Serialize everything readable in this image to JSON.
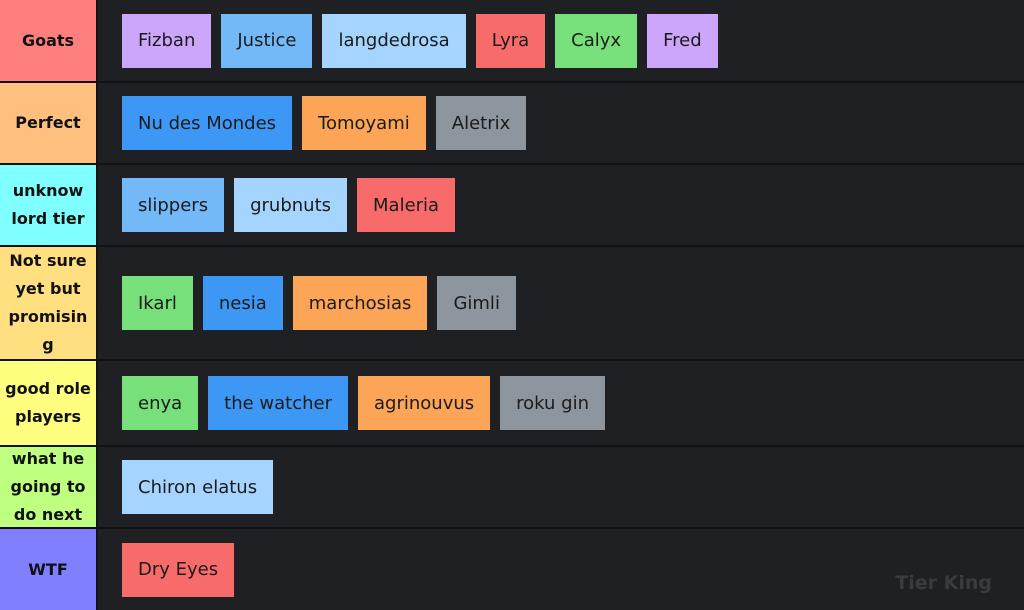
{
  "tiers": [
    {
      "label": "Goats",
      "color": "#ff7f7f",
      "items": [
        {
          "text": "Fizban",
          "color": "#cba6fb"
        },
        {
          "text": "Justice",
          "color": "#74b9f7"
        },
        {
          "text": "langdedrosa",
          "color": "#a5d4ff"
        },
        {
          "text": "Lyra",
          "color": "#f86b6b"
        },
        {
          "text": "Calyx",
          "color": "#77e07b"
        },
        {
          "text": "Fred",
          "color": "#cba6fb"
        }
      ]
    },
    {
      "label": "Perfect",
      "color": "#ffbf7f",
      "items": [
        {
          "text": "Nu des Mondes",
          "color": "#3d98f5"
        },
        {
          "text": "Tomoyami",
          "color": "#fca556"
        },
        {
          "text": "Aletrix",
          "color": "#8d959f"
        }
      ]
    },
    {
      "label": "unknow lord tier",
      "color": "#7fffff",
      "items": [
        {
          "text": "slippers",
          "color": "#74b9f7"
        },
        {
          "text": "grubnuts",
          "color": "#a5d4ff"
        },
        {
          "text": "Maleria",
          "color": "#f86b6b"
        }
      ]
    },
    {
      "label": "Not sure yet but promising",
      "color": "#ffdf7f",
      "items": [
        {
          "text": "Ikarl",
          "color": "#77e07b"
        },
        {
          "text": "nesia",
          "color": "#3d98f5"
        },
        {
          "text": "marchosias",
          "color": "#fca556"
        },
        {
          "text": "Gimli",
          "color": "#8d959f"
        }
      ]
    },
    {
      "label": "good role players",
      "color": "#ffff7f",
      "items": [
        {
          "text": "enya",
          "color": "#77e07b"
        },
        {
          "text": "the watcher",
          "color": "#3d98f5"
        },
        {
          "text": "agrinouvus",
          "color": "#fca556"
        },
        {
          "text": "roku gin",
          "color": "#8d959f"
        }
      ]
    },
    {
      "label": "what he going to do next",
      "color": "#bfff7f",
      "items": [
        {
          "text": "Chiron elatus",
          "color": "#a5d4ff"
        }
      ]
    },
    {
      "label": "WTF",
      "color": "#7f7fff",
      "items": [
        {
          "text": "Dry Eyes",
          "color": "#f86b6b"
        }
      ]
    }
  ],
  "watermark": "Tier King"
}
